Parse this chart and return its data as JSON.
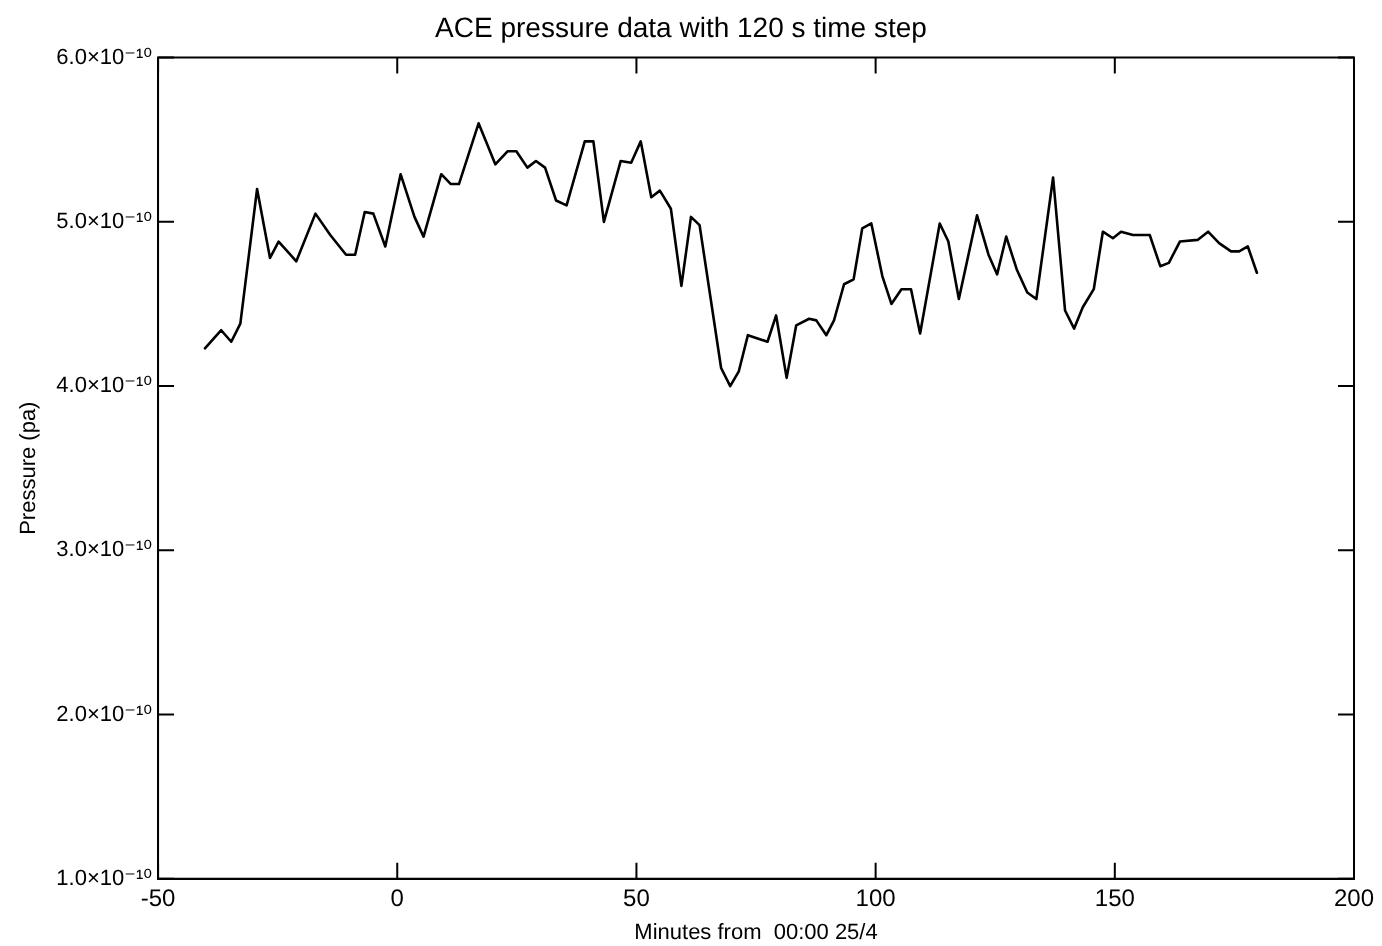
{
  "chart_data": {
    "type": "line",
    "title": "ACE pressure data with 120 s time step",
    "xlabel": "Minutes from  00:00 25/4",
    "ylabel": "Pressure (pa)",
    "x": [
      -40.2,
      -36.8,
      -34.7,
      -32.8,
      -29.3,
      -26.6,
      -24.8,
      -21.1,
      -17.1,
      -14.0,
      -10.7,
      -8.8,
      -6.8,
      -5.0,
      -2.5,
      0.7,
      3.6,
      5.5,
      9.2,
      11.2,
      12.9,
      17.0,
      20.5,
      23.1,
      24.9,
      27.2,
      29.0,
      30.9,
      33.2,
      35.4,
      39.2,
      41.0,
      43.2,
      46.7,
      48.9,
      50.9,
      53.1,
      54.9,
      57.2,
      59.4,
      61.4,
      63.2,
      67.7,
      69.6,
      71.4,
      73.3,
      77.4,
      79.2,
      81.4,
      83.4,
      86.1,
      87.6,
      89.7,
      91.3,
      93.4,
      95.4,
      97.2,
      99.1,
      101.4,
      103.3,
      105.4,
      107.4,
      109.3,
      113.4,
      115.2,
      117.4,
      121.2,
      123.6,
      125.4,
      127.3,
      129.5,
      131.7,
      133.6,
      137.1,
      139.6,
      141.5,
      143.3,
      145.6,
      147.5,
      149.6,
      151.3,
      153.8,
      157.3,
      159.5,
      161.3,
      163.6,
      167.3,
      169.5,
      171.8,
      174.3,
      176.0,
      177.8,
      179.7
    ],
    "series": [
      {
        "color": "#000000",
        "values": [
          4.23e-10,
          4.34e-10,
          4.27e-10,
          4.38e-10,
          5.2e-10,
          4.78e-10,
          4.88e-10,
          4.76e-10,
          5.05e-10,
          4.92e-10,
          4.8e-10,
          4.8e-10,
          5.06e-10,
          5.05e-10,
          4.85e-10,
          5.29e-10,
          5.03e-10,
          4.91e-10,
          5.29e-10,
          5.23e-10,
          5.23e-10,
          5.6e-10,
          5.35e-10,
          5.43e-10,
          5.43e-10,
          5.33e-10,
          5.37e-10,
          5.33e-10,
          5.13e-10,
          5.1e-10,
          5.49e-10,
          5.49e-10,
          5e-10,
          5.37e-10,
          5.36e-10,
          5.49e-10,
          5.15e-10,
          5.19e-10,
          5.08e-10,
          4.61e-10,
          5.03e-10,
          4.98e-10,
          4.11e-10,
          4e-10,
          4.09e-10,
          4.31e-10,
          4.27e-10,
          4.43e-10,
          4.05e-10,
          4.37e-10,
          4.41e-10,
          4.4e-10,
          4.31e-10,
          4.4e-10,
          4.62e-10,
          4.65e-10,
          4.96e-10,
          4.99e-10,
          4.67e-10,
          4.5e-10,
          4.59e-10,
          4.59e-10,
          4.32e-10,
          4.99e-10,
          4.88e-10,
          4.53e-10,
          5.04e-10,
          4.8e-10,
          4.68e-10,
          4.91e-10,
          4.71e-10,
          4.57e-10,
          4.53e-10,
          5.27e-10,
          4.46e-10,
          4.35e-10,
          4.48e-10,
          4.59e-10,
          4.94e-10,
          4.9e-10,
          4.94e-10,
          4.92e-10,
          4.92e-10,
          4.73e-10,
          4.75e-10,
          4.88e-10,
          4.89e-10,
          4.94e-10,
          4.87e-10,
          4.82e-10,
          4.82e-10,
          4.85e-10,
          4.69e-10
        ]
      }
    ],
    "xlim": [
      -50,
      200
    ],
    "xticks": [
      -50,
      0,
      50,
      100,
      150,
      200
    ],
    "ylim": [
      1e-10,
      6e-10
    ],
    "yticks": [
      {
        "value": 1e-10,
        "label": "1.0×10⁻¹⁰"
      },
      {
        "value": 2e-10,
        "label": "2.0×10⁻¹⁰"
      },
      {
        "value": 3e-10,
        "label": "3.0×10⁻¹⁰"
      },
      {
        "value": 4e-10,
        "label": "4.0×10⁻¹⁰"
      },
      {
        "value": 5e-10,
        "label": "5.0×10⁻¹⁰"
      },
      {
        "value": 6e-10,
        "label": "6.0×10⁻¹⁰"
      }
    ],
    "grid": false,
    "legend": false,
    "marker": "none",
    "line_style": "solid"
  }
}
